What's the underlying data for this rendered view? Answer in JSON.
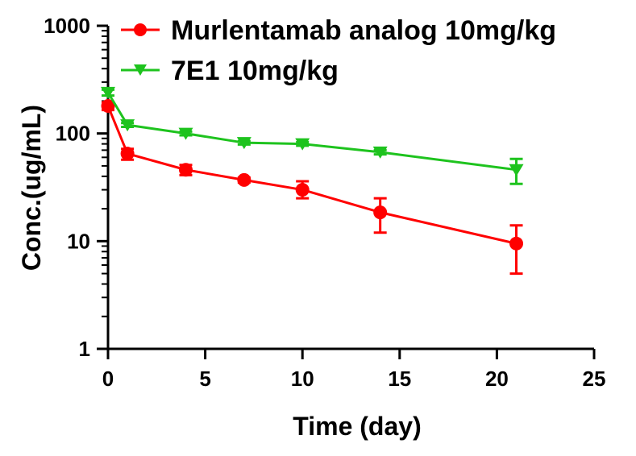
{
  "colors": {
    "axis": "#000000",
    "series_0": "#ff0000",
    "series_1": "#1ec31e"
  },
  "chart_data": {
    "type": "line",
    "xlabel": "Time (day)",
    "ylabel": "Conc.(ug/mL)",
    "xlim": [
      0,
      25
    ],
    "ylim": [
      1,
      1000
    ],
    "yscale": "log",
    "x_ticks": [
      "0",
      "5",
      "10",
      "15",
      "20",
      "25"
    ],
    "y_ticks": [
      "1",
      "10",
      "100",
      "1000"
    ],
    "x_tick_values": [
      0,
      5,
      10,
      15,
      20,
      25
    ],
    "y_tick_values": [
      1,
      10,
      100,
      1000
    ],
    "grid": false,
    "legend_position": "top-right",
    "series": [
      {
        "name": "Murlentamab analog 10mg/kg",
        "marker": "circle",
        "color": "#ff0000",
        "x": [
          0,
          1,
          4,
          7,
          10,
          14,
          21
        ],
        "y": [
          180,
          65,
          46,
          37,
          30,
          18.5,
          9.5
        ],
        "error_low": [
          165,
          57,
          41,
          35,
          25,
          12,
          5
        ],
        "error_high": [
          195,
          72,
          51,
          39,
          36,
          25,
          14
        ]
      },
      {
        "name": "7E1 10mg/kg",
        "marker": "triangle-down",
        "color": "#1ec31e",
        "x": [
          0,
          1,
          4,
          7,
          10,
          14,
          21
        ],
        "y": [
          240,
          120,
          100,
          82,
          80,
          67,
          46
        ],
        "error_low": [
          225,
          115,
          96,
          79,
          77,
          64,
          34
        ],
        "error_high": [
          255,
          125,
          104,
          85,
          83,
          70,
          58
        ]
      }
    ]
  }
}
